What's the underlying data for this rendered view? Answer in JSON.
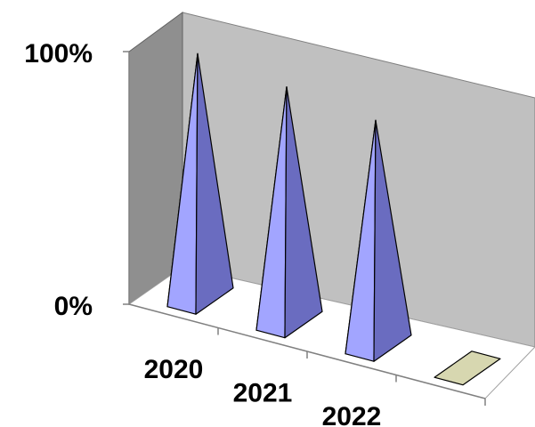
{
  "chart_data": {
    "type": "bar",
    "style": "3d-pyramid",
    "categories": [
      "2020",
      "2021",
      "2022",
      ""
    ],
    "values": [
      100,
      96,
      92,
      0
    ],
    "ylim": [
      0,
      100
    ],
    "y_ticks": [
      "100%",
      "0%"
    ],
    "grid": false,
    "legend": "none",
    "colors": {
      "pyramid_light": "#a2a5ff",
      "pyramid_dark": "#6a6cc0",
      "back_wall": "#c0c0c0",
      "side_wall": "#8f8f8f",
      "floor": "#ffffff",
      "empty_marker": "#d7d7b0"
    }
  }
}
